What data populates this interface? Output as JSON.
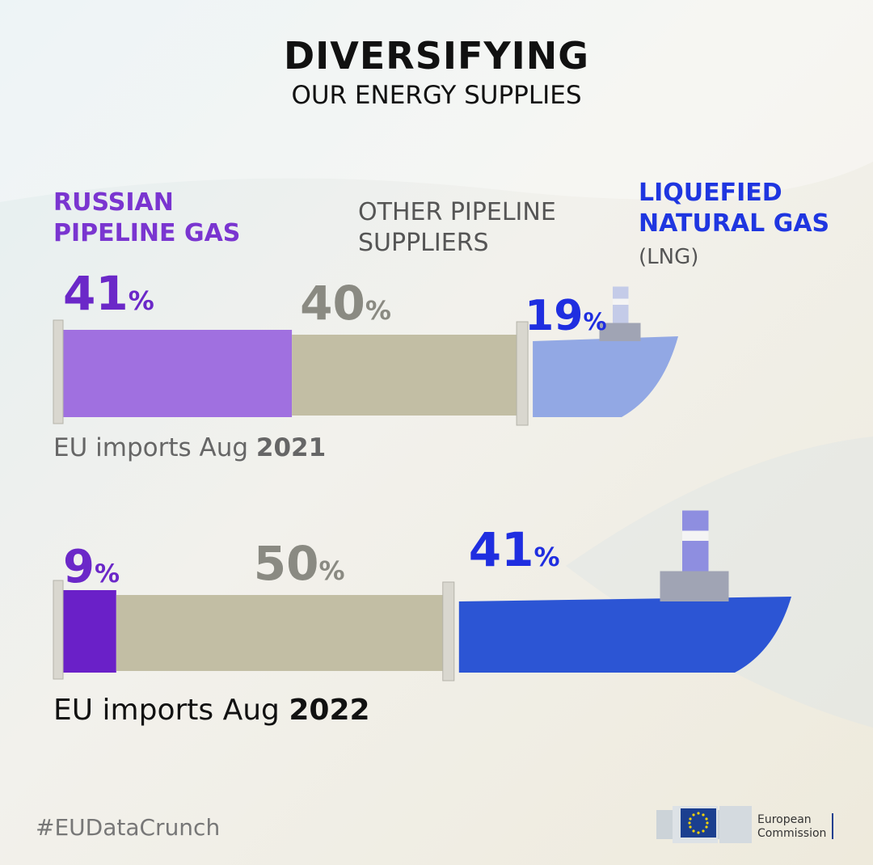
{
  "title": "DIVERSIFYING",
  "subtitle": "OUR ENERGY SUPPLIES",
  "categories": {
    "russian": "RUSSIAN\nPIPELINE GAS",
    "other": "OTHER PIPELINE\nSUPPLIERS",
    "lng": "LIQUEFIED\nNATURAL GAS",
    "lng_abbr": "(LNG)"
  },
  "captions": {
    "prefix_2021": "EU imports  Aug ",
    "year_2021": "2021",
    "prefix_2022": "EU imports  Aug ",
    "year_2022": "2022"
  },
  "hashtag": "#EUDataCrunch",
  "logo_text": "European\nCommission",
  "colors": {
    "russian_2021": "#a070e0",
    "russian_2022": "#6a20c8",
    "other": "#c2bea4",
    "lng_2021": "#92a8e4",
    "lng_2022": "#2c55d4",
    "label_russian": "#6b28c8",
    "label_other": "#8a8a82",
    "label_lng": "#1f2ee0"
  },
  "chart_data": {
    "type": "bar",
    "stacked": true,
    "title": "DIVERSIFYING",
    "subtitle": "OUR ENERGY SUPPLIES",
    "categories": [
      "EU imports Aug 2021",
      "EU imports Aug 2022"
    ],
    "series": [
      {
        "name": "RUSSIAN PIPELINE GAS",
        "values": [
          41,
          9
        ]
      },
      {
        "name": "OTHER PIPELINE SUPPLIERS",
        "values": [
          40,
          50
        ]
      },
      {
        "name": "LIQUEFIED NATURAL GAS (LNG)",
        "values": [
          19,
          41
        ]
      }
    ],
    "value_labels": [
      [
        "41%",
        "40%",
        "19%"
      ],
      [
        "9%",
        "50%",
        "41%"
      ]
    ],
    "unit": "%"
  }
}
